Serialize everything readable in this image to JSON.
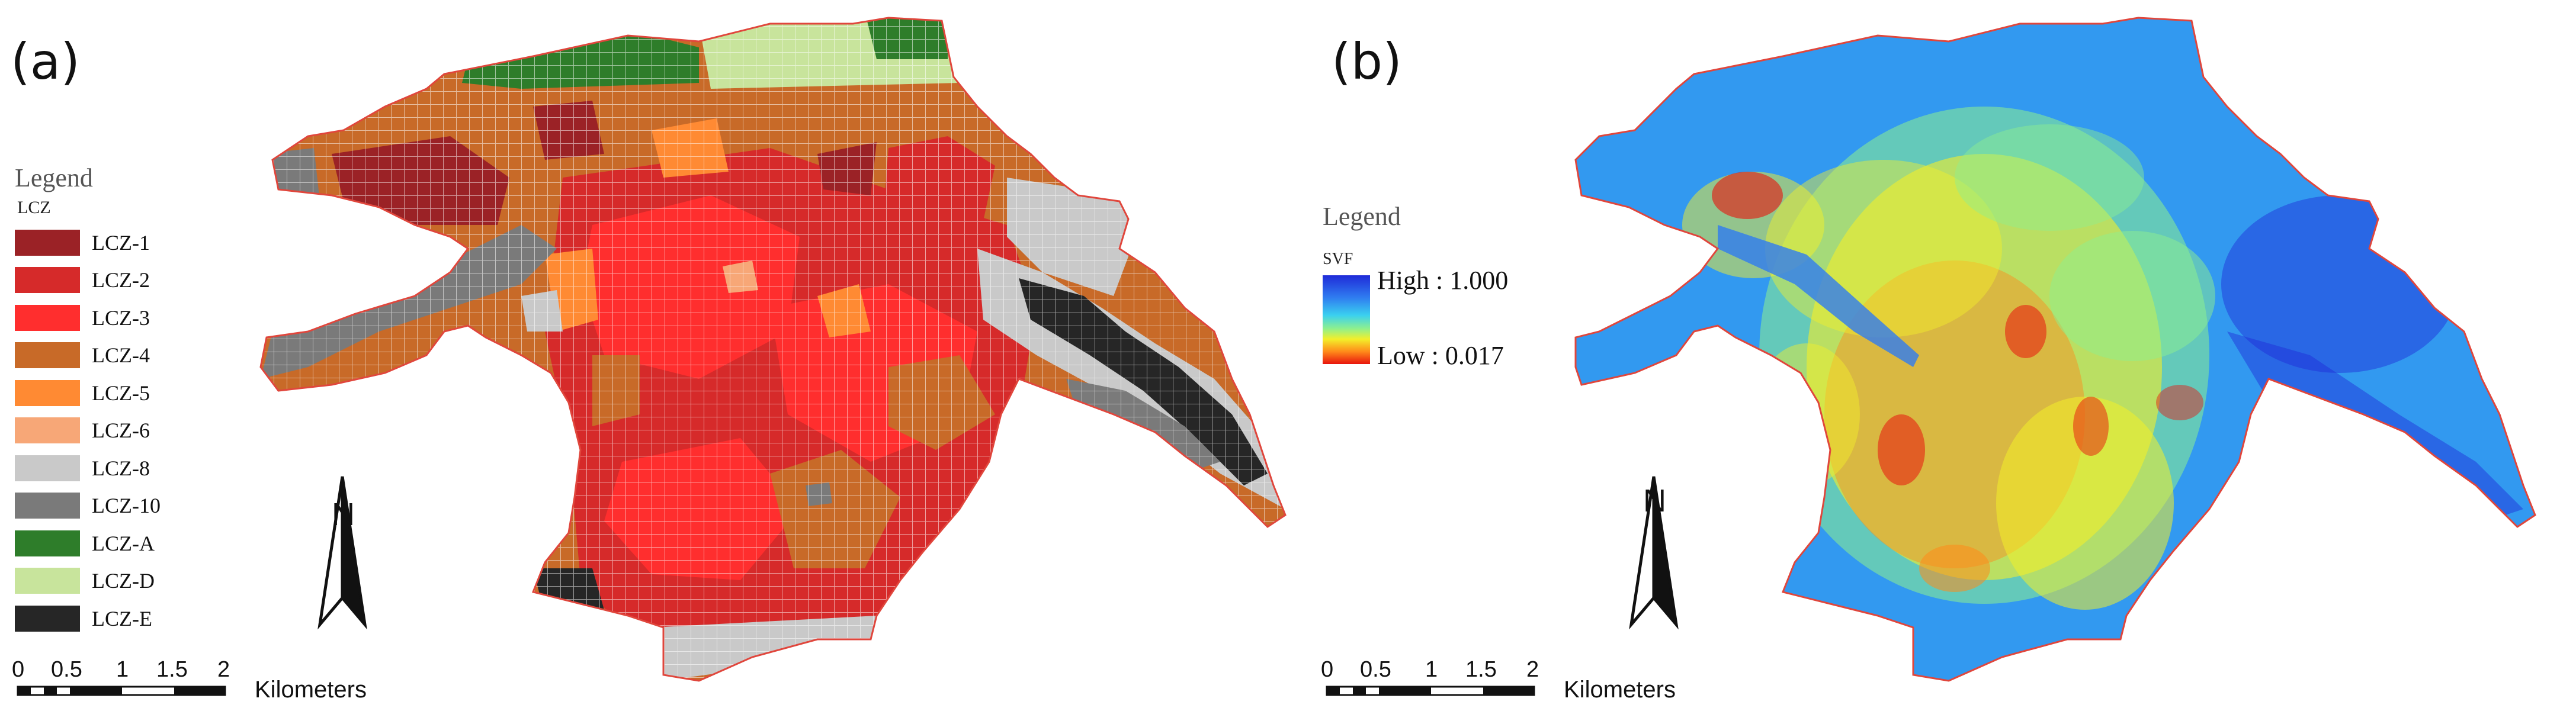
{
  "panels": [
    {
      "label": "(a)",
      "legend": {
        "title": "Legend",
        "field": "LCZ",
        "classes": [
          {
            "label": "LCZ-1",
            "color": "#9b2226"
          },
          {
            "label": "LCZ-2",
            "color": "#d62a2a"
          },
          {
            "label": "LCZ-3",
            "color": "#ff2e2e"
          },
          {
            "label": "LCZ-4",
            "color": "#c86a28"
          },
          {
            "label": "LCZ-5",
            "color": "#ff8a33"
          },
          {
            "label": "LCZ-6",
            "color": "#f7a777"
          },
          {
            "label": "LCZ-8",
            "color": "#c9c9c9"
          },
          {
            "label": "LCZ-10",
            "color": "#7a7a7a"
          },
          {
            "label": "LCZ-A",
            "color": "#2e7d2a"
          },
          {
            "label": "LCZ-D",
            "color": "#c8e49c"
          },
          {
            "label": "LCZ-E",
            "color": "#262626"
          }
        ]
      },
      "north_arrow": {
        "label": "N",
        "icon": "north-arrow-icon"
      },
      "scale_bar": {
        "ticks": [
          "0",
          "0.5",
          "1",
          "1.5",
          "2"
        ],
        "unit": "Kilometers"
      }
    },
    {
      "label": "(b)",
      "legend": {
        "title": "Legend",
        "field": "SVF",
        "high_label": "High : 1.000",
        "low_label": "Low : 0.017",
        "gradient": [
          "#1f2bd8",
          "#2f7cf0",
          "#3ad0f0",
          "#8ef08e",
          "#f3ef2a",
          "#ff8a1a",
          "#e8140e"
        ]
      },
      "north_arrow": {
        "label": "N",
        "icon": "north-arrow-icon"
      },
      "scale_bar": {
        "ticks": [
          "0",
          "0.5",
          "1",
          "1.5",
          "2"
        ],
        "unit": "Kilometers"
      }
    }
  ]
}
